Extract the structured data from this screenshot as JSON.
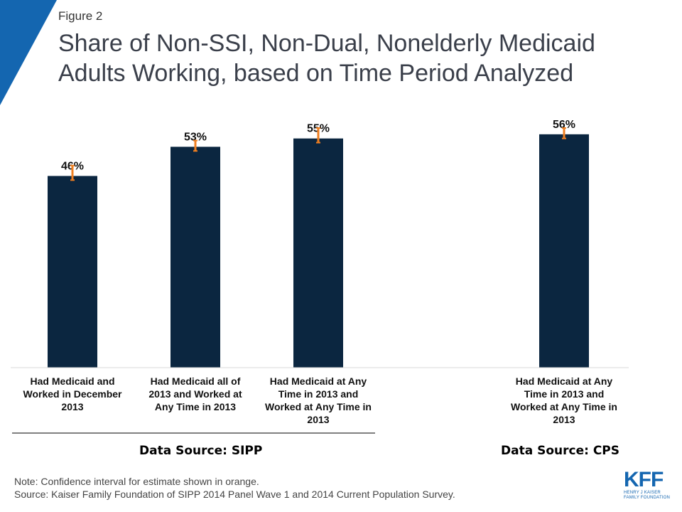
{
  "figure_label": "Figure 2",
  "title": "Share of Non-SSI, Non-Dual, Nonelderly Medicaid Adults Working, based on Time Period Analyzed",
  "chart_data": {
    "type": "bar",
    "categories": [
      "Had Medicaid and Worked in December 2013",
      "Had Medicaid all of 2013 and Worked at Any Time in 2013",
      "Had Medicaid at Any Time in 2013 and Worked at Any Time in 2013",
      "Had Medicaid at Any Time in 2013 and Worked at Any Time in 2013"
    ],
    "category_lines": [
      [
        "Had Medicaid and",
        "Worked in December",
        "2013"
      ],
      [
        "Had Medicaid all of",
        "2013 and Worked at",
        "Any Time in 2013"
      ],
      [
        "Had Medicaid at Any",
        "Time in 2013 and",
        "Worked at Any Time in",
        "2013"
      ],
      [
        "Had Medicaid at Any",
        "Time in 2013 and",
        "Worked at Any Time in",
        "2013"
      ]
    ],
    "values": [
      46,
      53,
      55,
      56
    ],
    "value_labels": [
      "46%",
      "53%",
      "55%",
      "56%"
    ],
    "error_bars": [
      [
        45.0,
        48.5
      ],
      [
        52.0,
        54.5
      ],
      [
        54.0,
        57.5
      ],
      [
        55.0,
        57.5
      ]
    ],
    "ylim": [
      0,
      61
    ],
    "groups": [
      {
        "label": "Data Source: SIPP",
        "categories": [
          0,
          1,
          2
        ]
      },
      {
        "label": "Data Source: CPS",
        "categories": [
          3
        ]
      }
    ],
    "bar_color": "#0b2640",
    "error_color": "#f07f20",
    "grid": false,
    "legend": "none"
  },
  "note": "Note: Confidence interval for estimate shown in orange.",
  "source": "Source: Kaiser Family Foundation of SIPP 2014 Panel Wave 1 and 2014 Current Population Survey.",
  "logo": {
    "mark": "KFF",
    "line1": "HENRY J KAISER",
    "line2": "FAMILY FOUNDATION",
    "color": "#1466b0"
  },
  "accent_color": "#1466b0"
}
